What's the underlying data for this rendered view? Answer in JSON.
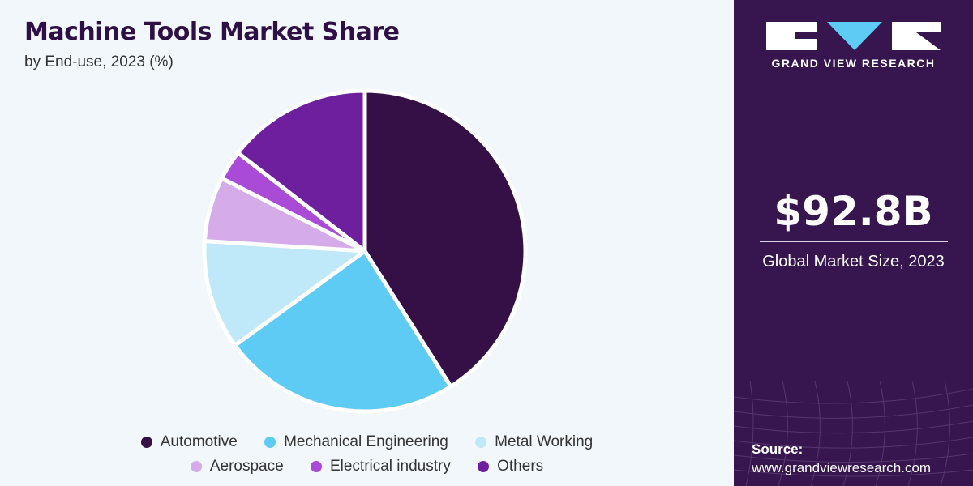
{
  "header": {
    "title": "Machine Tools Market Share",
    "subtitle": "by End-use, 2023 (%)"
  },
  "chart_data": {
    "type": "pie",
    "title": "Machine Tools Market Share",
    "subtitle": "by End-use, 2023 (%)",
    "slices": [
      {
        "label": "Automotive",
        "value": 41,
        "color": "#351046"
      },
      {
        "label": "Mechanical Engineering",
        "value": 24,
        "color": "#5ecbf5"
      },
      {
        "label": "Metal Working",
        "value": 11,
        "color": "#bfe9f9"
      },
      {
        "label": "Aerospace",
        "value": 6.5,
        "color": "#d5abe9"
      },
      {
        "label": "Electrical industry",
        "value": 3,
        "color": "#a94bd6"
      },
      {
        "label": "Others",
        "value": 14.5,
        "color": "#6d1f9d"
      }
    ],
    "legend": [
      "Automotive",
      "Mechanical Engineering",
      "Metal Working",
      "Aerospace",
      "Electrical industry",
      "Others"
    ]
  },
  "sidebar": {
    "brand": "GRAND VIEW RESEARCH",
    "market_size": "$92.8B",
    "market_caption": "Global Market Size, 2023",
    "source_label": "Source:",
    "source_url": "www.grandviewresearch.com",
    "bg_color": "#37164f"
  }
}
